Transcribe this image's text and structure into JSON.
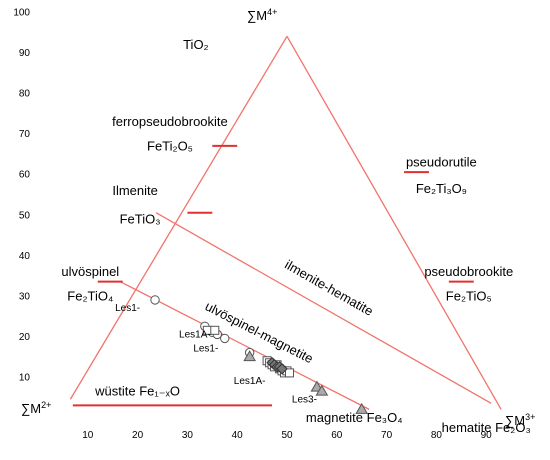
{
  "chart_data": {
    "type": "scatter",
    "axes": {
      "x": {
        "ticks": [
          "10",
          "20",
          "30",
          "40",
          "50",
          "60",
          "70",
          "80",
          "90"
        ],
        "range": [
          5,
          95
        ]
      },
      "y": {
        "ticks": [
          "10",
          "20",
          "30",
          "40",
          "50",
          "60",
          "70",
          "80",
          "90",
          "100"
        ],
        "range": [
          3,
          100
        ]
      }
    },
    "apex_labels": {
      "top": "∑M4+",
      "left": "∑M2+",
      "right": "∑M3+"
    },
    "compound_labels": [
      {
        "name": "TiO2",
        "text": "TiO₂",
        "x": 31.7,
        "y": 92
      },
      {
        "name": "ferropseudobrookite",
        "text": "ferropseudobrookite",
        "x": 26.5,
        "y": 73
      },
      {
        "name": "FeTi2O5",
        "text": "FeTi₂O₅",
        "x": 26.5,
        "y": 67
      },
      {
        "name": "ilmenite",
        "text": "Ilmenite",
        "x": 19.5,
        "y": 56
      },
      {
        "name": "FeTiO3",
        "text": "FeTiO₃",
        "x": 20.5,
        "y": 49
      },
      {
        "name": "ulvospinel",
        "text": "ulvöspinel",
        "x": 10.5,
        "y": 36
      },
      {
        "name": "Fe2TiO4",
        "text": "Fe₂TiO₄",
        "x": 10.5,
        "y": 30
      },
      {
        "name": "pseudorutile",
        "text": "pseudorutile",
        "x": 81,
        "y": 63
      },
      {
        "name": "Fe2Ti3O9",
        "text": "Fe₂Ti₃O₉",
        "x": 81,
        "y": 56.5
      },
      {
        "name": "pseudobrookite",
        "text": "pseudobrookite",
        "x": 86.5,
        "y": 36
      },
      {
        "name": "Fe2TiO5",
        "text": "Fe₂TiO₅",
        "x": 86.5,
        "y": 30
      },
      {
        "name": "wustite",
        "text": "wüstite Fe₁₋ₓO",
        "x": 20,
        "y": 6.5
      },
      {
        "name": "magnetite",
        "text": "magnetite  Fe₃O₄",
        "x": 63.5,
        "y": 0
      },
      {
        "name": "hematite",
        "text": "hematite  Fe₂O₃",
        "x": 90,
        "y": -2.5
      }
    ],
    "boundary_lines": [
      {
        "name": "ilmenite-hematite",
        "text": "ilmenite-hematite",
        "from": [
          23.7,
          50.5
        ],
        "to": [
          91,
          3.5
        ],
        "label_at": [
          58,
          31
        ]
      },
      {
        "name": "ulvospinel-magnetite",
        "text": "ulvöspinel-magnetite",
        "from": [
          16.5,
          33.5
        ],
        "to": [
          66.5,
          2
        ],
        "label_at": [
          44,
          20
        ]
      }
    ],
    "triangle": {
      "top": [
        50,
        94
      ],
      "left": [
        6.5,
        4.5
      ],
      "right": [
        93,
        2
      ]
    },
    "red_ticks": [
      {
        "name": "FeTi2O5-tick",
        "x": [
          35,
          40
        ],
        "y": 67
      },
      {
        "name": "Fe2Ti3O9-tick",
        "x": [
          73.5,
          78.5
        ],
        "y": 60.5
      },
      {
        "name": "Fe2TiO5-tick",
        "x": [
          82.5,
          87.5
        ],
        "y": 33.5
      },
      {
        "name": "FeTiO3-tick",
        "x": [
          30,
          35
        ],
        "y": 50.5
      },
      {
        "name": "Fe2TiO4-tick",
        "x": [
          12,
          17
        ],
        "y": 33.5
      },
      {
        "name": "wustite-line",
        "x": [
          7,
          47
        ],
        "y": 3
      }
    ],
    "sample_labels": [
      {
        "text": "Les1-",
        "x": 18,
        "y": 27
      },
      {
        "text": "Les1A-",
        "x": 31.5,
        "y": 20.5
      },
      {
        "text": "Les1-",
        "x": 33.7,
        "y": 17
      },
      {
        "text": "Les1A-",
        "x": 42.5,
        "y": 9
      },
      {
        "text": "Les3-",
        "x": 53.5,
        "y": 4.5
      }
    ],
    "series": [
      {
        "marker": "circle",
        "points": [
          [
            23.5,
            29
          ],
          [
            33.5,
            22.5
          ],
          [
            35,
            21
          ],
          [
            36,
            20.5
          ],
          [
            37.5,
            19.5
          ],
          [
            42.5,
            16
          ]
        ]
      },
      {
        "marker": "square",
        "points": [
          [
            34,
            21.5
          ],
          [
            35.5,
            21.5
          ],
          [
            46,
            14
          ],
          [
            46.5,
            13.5
          ],
          [
            47,
            13
          ],
          [
            47.5,
            12.5
          ],
          [
            48,
            13
          ],
          [
            48.5,
            12
          ],
          [
            49,
            11.5
          ],
          [
            49.5,
            11
          ],
          [
            50,
            11.5
          ],
          [
            50.5,
            11
          ]
        ]
      },
      {
        "marker": "diamond",
        "points": [
          [
            47,
            13.5
          ],
          [
            47.5,
            13
          ],
          [
            48,
            12.5
          ],
          [
            48.5,
            12.5
          ],
          [
            49,
            12
          ]
        ]
      },
      {
        "marker": "triangle",
        "points": [
          [
            42.5,
            15
          ],
          [
            56,
            7.5
          ],
          [
            57,
            6.5
          ],
          [
            65,
            2
          ]
        ]
      }
    ]
  }
}
